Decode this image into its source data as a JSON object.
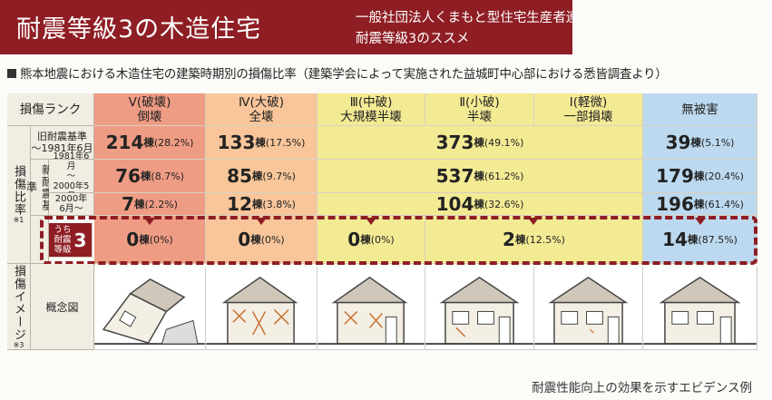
{
  "header": {
    "title": "耐震等級3の木造住宅",
    "org": "一般社団法人くまもと型住宅生産者連合会",
    "sub": "耐震等級3のススメ"
  },
  "caption": "熊本地震における木造住宅の建築時期別の損傷比率（建築学会によって実施された益城町中心部における悉皆調査より）",
  "table": {
    "rank_label": "損傷ランク",
    "ratio_label": "損傷比率",
    "ratio_note": "※1",
    "new_label": "新耐震基準",
    "image_label": "損傷イメージ",
    "image_note": "※3",
    "concept_label": "概念図",
    "columns": [
      {
        "key": "v",
        "l1": "Ⅴ(破壊)",
        "l2": "倒壊"
      },
      {
        "key": "iv",
        "l1": "Ⅳ(大破)",
        "l2": "全壊"
      },
      {
        "key": "iii",
        "l1": "Ⅲ(中破)",
        "l2": "大規模半壊"
      },
      {
        "key": "ii",
        "l1": "Ⅱ(小破)",
        "l2": "半壊"
      },
      {
        "key": "i",
        "l1": "Ⅰ(軽微)",
        "l2": "一部損壊"
      },
      {
        "key": "none",
        "l1": "無被害",
        "l2": ""
      }
    ],
    "rows": {
      "old": {
        "label1": "旧耐震基準",
        "label2": "～1981年6月",
        "v": {
          "n": "214",
          "p": "(28.2%)"
        },
        "iv": {
          "n": "133",
          "p": "(17.5%)"
        },
        "mid": {
          "n": "373",
          "p": "(49.1%)"
        },
        "none": {
          "n": "39",
          "p": "(5.1%)"
        }
      },
      "new1": {
        "label1": "1981年6月",
        "label2": "～",
        "label3": "2000年5月",
        "v": {
          "n": "76",
          "p": "(8.7%)"
        },
        "iv": {
          "n": "85",
          "p": "(9.7%)"
        },
        "mid": {
          "n": "537",
          "p": "(61.2%)"
        },
        "none": {
          "n": "179",
          "p": "(20.4%)"
        }
      },
      "new2": {
        "label1": "2000年",
        "label2": "6月～",
        "v": {
          "n": "7",
          "p": "(2.2%)"
        },
        "iv": {
          "n": "12",
          "p": "(3.8%)"
        },
        "mid": {
          "n": "104",
          "p": "(32.6%)"
        },
        "none": {
          "n": "196",
          "p": "(61.4%)"
        }
      },
      "grade3": {
        "label1": "うち",
        "label2": "耐震",
        "label3": "等級",
        "num": "3",
        "v": {
          "n": "0",
          "p": "(0%)"
        },
        "iv": {
          "n": "0",
          "p": "(0%)"
        },
        "iii": {
          "n": "0",
          "p": "(0%)"
        },
        "ii_i": {
          "n": "2",
          "p": "(12.5%)"
        },
        "none": {
          "n": "14",
          "p": "(87.5%)"
        }
      }
    },
    "unit": "棟"
  },
  "footer": "耐震性能向上の効果を示すエビデンス例",
  "colors": {
    "brand": "#8e1e24",
    "v": "#ef9c84",
    "iv": "#f8c69a",
    "mid": "#f3ea94",
    "none": "#bcd9ef"
  }
}
